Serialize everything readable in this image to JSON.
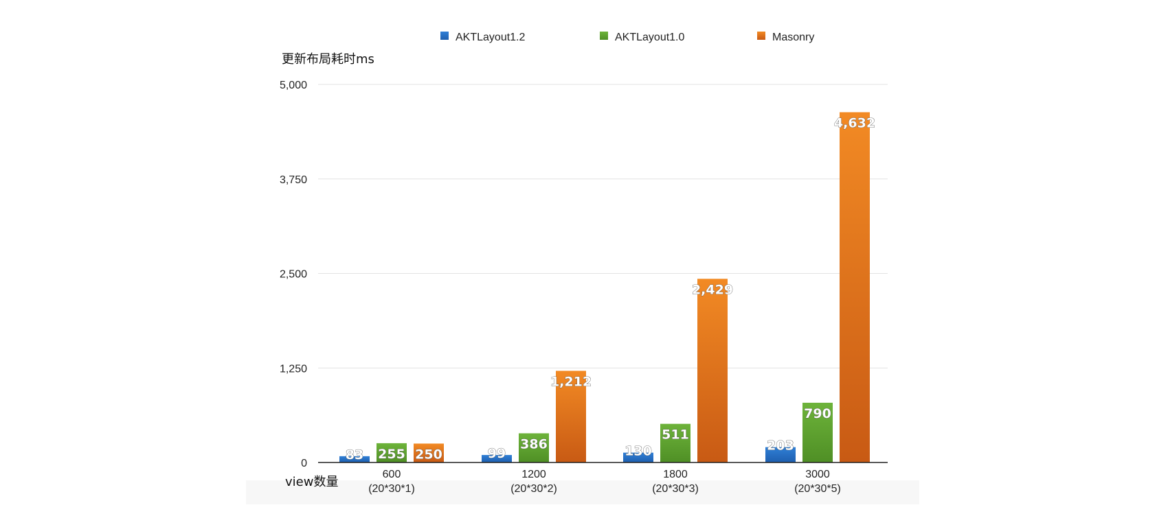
{
  "chart_data": {
    "type": "bar",
    "ylabel": "更新布局耗时ms",
    "xlabel": "view数量",
    "ylim": [
      0,
      5000
    ],
    "yticks": [
      "0",
      "1,250",
      "2,500",
      "3,750",
      "5,000"
    ],
    "grid": true,
    "legend_position": "top",
    "categories": [
      [
        "600",
        "(20*30*1)"
      ],
      [
        "1200",
        "(20*30*2)"
      ],
      [
        "1800",
        "(20*30*3)"
      ],
      [
        "3000",
        "(20*30*5)"
      ]
    ],
    "series": [
      {
        "name": "AKTLayout1.2",
        "color": "#2F7FD6",
        "color_dark": "#1E5FAF",
        "values": [
          83,
          99,
          130,
          203
        ],
        "labels": [
          "83",
          "99",
          "130",
          "203"
        ]
      },
      {
        "name": "AKTLayout1.0",
        "color": "#6DB33A",
        "color_dark": "#4F8F25",
        "values": [
          255,
          386,
          511,
          790
        ],
        "labels": [
          "255",
          "386",
          "511",
          "790"
        ]
      },
      {
        "name": "Masonry",
        "color": "#F28A24",
        "color_dark": "#C85A14",
        "values": [
          250,
          1212,
          2429,
          4632
        ],
        "labels": [
          "250",
          "1,212",
          "2,429",
          "4,632"
        ]
      }
    ]
  }
}
